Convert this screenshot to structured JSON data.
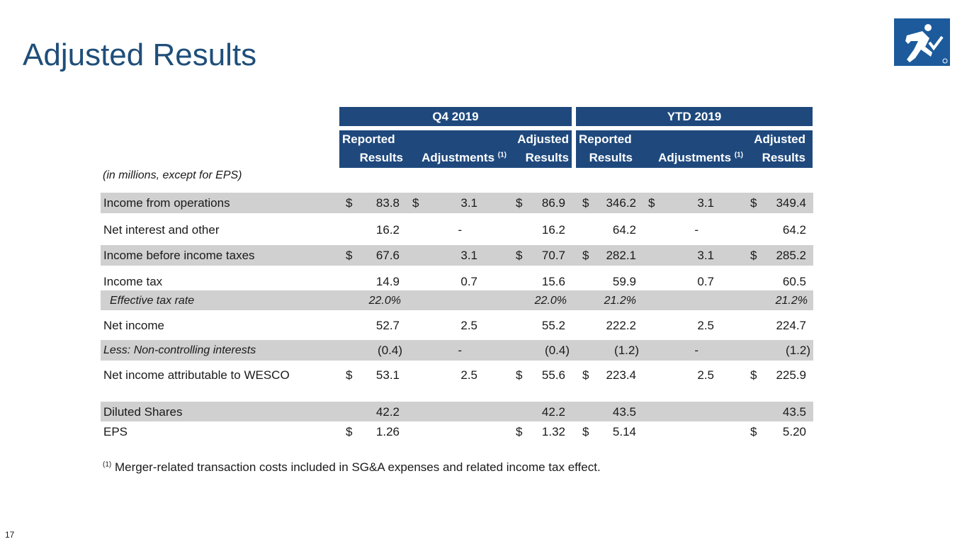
{
  "slide": {
    "title": "Adjusted Results",
    "page_number": "17",
    "units_note": "(in millions, except for EPS)",
    "footnote_marker": "(1)",
    "footnote_text": " Merger-related transaction costs included in SG&A expenses and related income tax effect."
  },
  "header": {
    "q4": "Q4 2019",
    "ytd": "YTD 2019",
    "reported_l1": "Reported",
    "reported_l2": "Results",
    "adjustments": "Adjustments",
    "adjustments_sup": "(1)",
    "adjusted_l1": "Adjusted",
    "adjusted_l2": "Results"
  },
  "colors": {
    "header_bg": "#1f497d",
    "title": "#1f4e79",
    "shade": "#d0d0d0",
    "logo_bg": "#1c5a9c"
  },
  "logo": {
    "icon": "running-man-check-icon"
  },
  "rows": [
    {
      "label": "Income from operations",
      "d1": "$",
      "v1": "83.8",
      "d2": "$",
      "v2": "3.1",
      "d3": "$",
      "v3": "86.9",
      "d4": "$",
      "v4": "346.2",
      "d5": "$",
      "v5": "3.1",
      "d6": "$",
      "v6": "349.4"
    },
    {
      "label": "Net interest and other",
      "d1": "",
      "v1": "16.2",
      "d2": "",
      "v2": "-",
      "d3": "",
      "v3": "16.2",
      "d4": "",
      "v4": "64.2",
      "d5": "",
      "v5": "-",
      "d6": "",
      "v6": "64.2"
    },
    {
      "label": "Income before income taxes",
      "d1": "$",
      "v1": "67.6",
      "d2": "",
      "v2": "3.1",
      "d3": "$",
      "v3": "70.7",
      "d4": "$",
      "v4": "282.1",
      "d5": "",
      "v5": "3.1",
      "d6": "$",
      "v6": "285.2"
    },
    {
      "label": "Income tax",
      "d1": "",
      "v1": "14.9",
      "d2": "",
      "v2": "0.7",
      "d3": "",
      "v3": "15.6",
      "d4": "",
      "v4": "59.9",
      "d5": "",
      "v5": "0.7",
      "d6": "",
      "v6": "60.5"
    },
    {
      "label": "Effective tax rate",
      "d1": "",
      "v1": "22.0%",
      "d2": "",
      "v2": "",
      "d3": "",
      "v3": "22.0%",
      "d4": "",
      "v4": "21.2%",
      "d5": "",
      "v5": "",
      "d6": "",
      "v6": "21.2%"
    },
    {
      "label": "Net income",
      "d1": "",
      "v1": "52.7",
      "d2": "",
      "v2": "2.5",
      "d3": "",
      "v3": "55.2",
      "d4": "",
      "v4": "222.2",
      "d5": "",
      "v5": "2.5",
      "d6": "",
      "v6": "224.7"
    },
    {
      "label": "Less: Non-controlling interests",
      "d1": "",
      "v1": "(0.4)",
      "d2": "",
      "v2": "-",
      "d3": "",
      "v3": "(0.4)",
      "d4": "",
      "v4": "(1.2)",
      "d5": "",
      "v5": "-",
      "d6": "",
      "v6": "(1.2)"
    },
    {
      "label": "Net income attributable to WESCO",
      "d1": "$",
      "v1": "53.1",
      "d2": "",
      "v2": "2.5",
      "d3": "$",
      "v3": "55.6",
      "d4": "$",
      "v4": "223.4",
      "d5": "",
      "v5": "2.5",
      "d6": "$",
      "v6": "225.9"
    },
    {
      "label": "Diluted Shares",
      "d1": "",
      "v1": "42.2",
      "d2": "",
      "v2": "",
      "d3": "",
      "v3": "42.2",
      "d4": "",
      "v4": "43.5",
      "d5": "",
      "v5": "",
      "d6": "",
      "v6": "43.5"
    },
    {
      "label": "EPS",
      "d1": "$",
      "v1": "1.26",
      "d2": "",
      "v2": "",
      "d3": "$",
      "v3": "1.32",
      "d4": "$",
      "v4": "5.14",
      "d5": "",
      "v5": "",
      "d6": "$",
      "v6": "5.20"
    }
  ]
}
